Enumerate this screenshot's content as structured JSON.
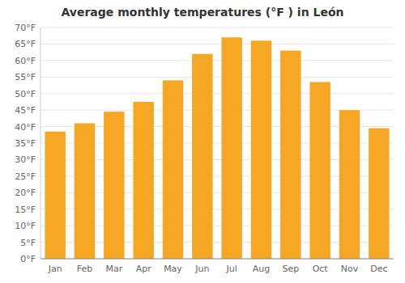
{
  "chart_data": {
    "type": "bar",
    "title": "Average monthly temperatures (°F ) in León",
    "categories": [
      "Jan",
      "Feb",
      "Mar",
      "Apr",
      "May",
      "Jun",
      "Jul",
      "Aug",
      "Sep",
      "Oct",
      "Nov",
      "Dec"
    ],
    "values": [
      38.5,
      41.0,
      44.5,
      47.5,
      54.0,
      62.0,
      67.0,
      66.0,
      63.0,
      53.5,
      45.0,
      39.5
    ],
    "color": "#F5A623",
    "ylim": [
      0,
      70
    ],
    "yticks": [
      {
        "value": 0,
        "label": "0°F"
      },
      {
        "value": 5,
        "label": "5°F"
      },
      {
        "value": 10,
        "label": "10°F"
      },
      {
        "value": 15,
        "label": "15°F"
      },
      {
        "value": 20,
        "label": "20°F"
      },
      {
        "value": 25,
        "label": "25°F"
      },
      {
        "value": 30,
        "label": "30°F"
      },
      {
        "value": 35,
        "label": "35°F"
      },
      {
        "value": 40,
        "label": "40°F"
      },
      {
        "value": 45,
        "label": "45°F"
      },
      {
        "value": 50,
        "label": "50°F"
      },
      {
        "value": 55,
        "label": "55°F"
      },
      {
        "value": 60,
        "label": "60°F"
      },
      {
        "value": 65,
        "label": "65°F"
      },
      {
        "value": 70,
        "label": "70°F"
      }
    ],
    "grid": true
  }
}
